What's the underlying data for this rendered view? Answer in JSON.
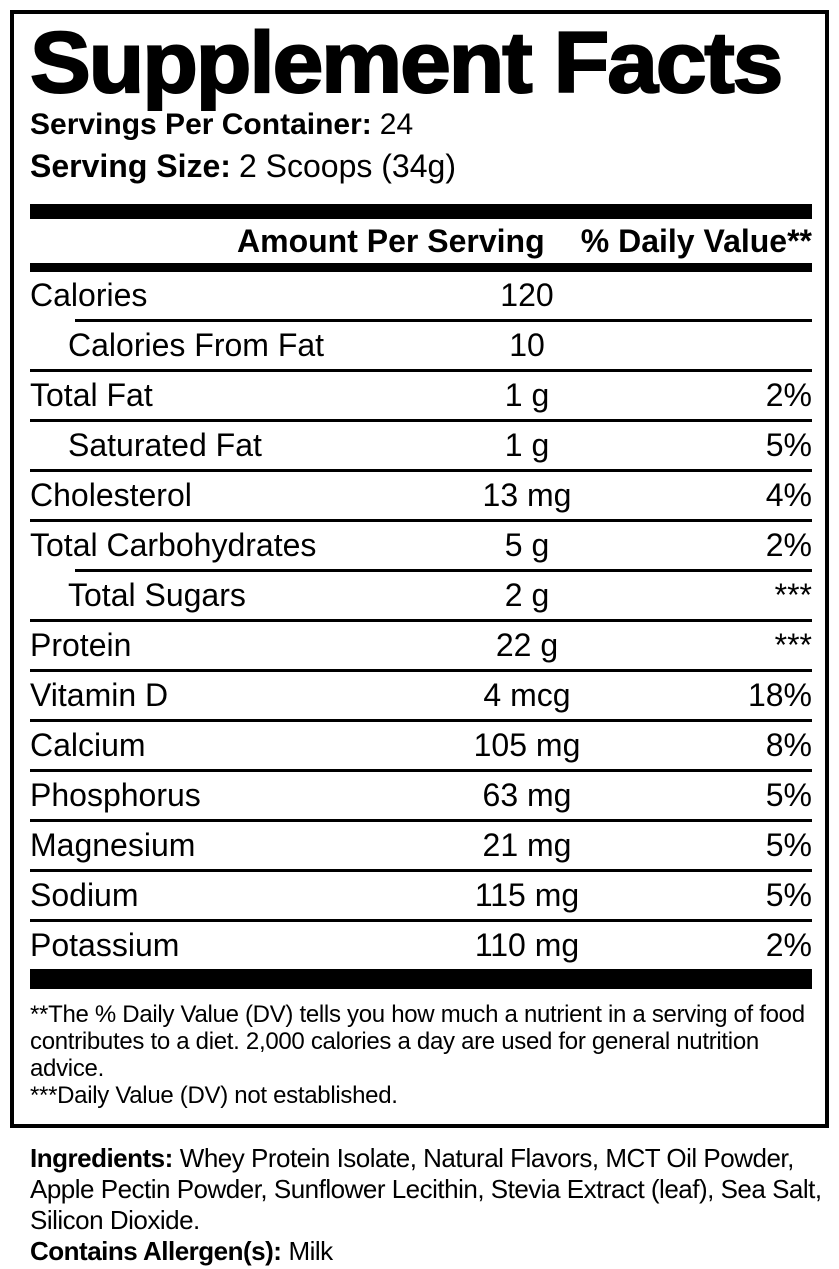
{
  "colors": {
    "text": "#000000",
    "background": "#ffffff"
  },
  "panel": {
    "title": "Supplement Facts",
    "servings_per_container": {
      "label": "Servings Per Container:",
      "value": "24"
    },
    "serving_size": {
      "label": "Serving Size:",
      "value": "2 Scoops (34g)"
    },
    "header": {
      "amount": "Amount Per Serving",
      "daily_value": "% Daily Value**"
    },
    "rows": [
      {
        "name": "Calories",
        "amount": "120",
        "daily_value": "",
        "indent": false,
        "divider_below": "indented"
      },
      {
        "name": "Calories From Fat",
        "amount": "10",
        "daily_value": "",
        "indent": true,
        "divider_below": "full"
      },
      {
        "name": "Total Fat",
        "amount": "1 g",
        "daily_value": "2%",
        "indent": false,
        "divider_below": "full"
      },
      {
        "name": "Saturated Fat",
        "amount": "1 g",
        "daily_value": "5%",
        "indent": true,
        "divider_below": "full"
      },
      {
        "name": "Cholesterol",
        "amount": "13 mg",
        "daily_value": "4%",
        "indent": false,
        "divider_below": "full"
      },
      {
        "name": "Total Carbohydrates",
        "amount": "5 g",
        "daily_value": "2%",
        "indent": false,
        "divider_below": "indented"
      },
      {
        "name": "Total Sugars",
        "amount": "2 g",
        "daily_value": "***",
        "indent": true,
        "divider_below": "full"
      },
      {
        "name": "Protein",
        "amount": "22 g",
        "daily_value": "***",
        "indent": false,
        "divider_below": "full"
      },
      {
        "name": "Vitamin D",
        "amount": "4 mcg",
        "daily_value": "18%",
        "indent": false,
        "divider_below": "full"
      },
      {
        "name": "Calcium",
        "amount": "105 mg",
        "daily_value": "8%",
        "indent": false,
        "divider_below": "full"
      },
      {
        "name": "Phosphorus",
        "amount": "63 mg",
        "daily_value": "5%",
        "indent": false,
        "divider_below": "full"
      },
      {
        "name": "Magnesium",
        "amount": "21 mg",
        "daily_value": "5%",
        "indent": false,
        "divider_below": "full"
      },
      {
        "name": "Sodium",
        "amount": "115 mg",
        "daily_value": "5%",
        "indent": false,
        "divider_below": "full"
      },
      {
        "name": "Potassium",
        "amount": "110 mg",
        "daily_value": "2%",
        "indent": false,
        "divider_below": "none"
      }
    ],
    "footnotes": [
      "**The % Daily Value (DV) tells you how much a nutrient in a serving of food contributes to a diet. 2,000 calories a day are used for general nutrition advice.",
      "***Daily Value (DV) not established."
    ]
  },
  "ingredients_section": {
    "ingredients_label": "Ingredients:",
    "ingredients_text": "Whey Protein Isolate, Natural Flavors, MCT Oil Powder, Apple Pectin Powder, Sunflower Lecithin, Stevia Extract (leaf), Sea Salt, Silicon Dioxide.",
    "allergen_label": "Contains Allergen(s):",
    "allergen_value": "Milk"
  }
}
